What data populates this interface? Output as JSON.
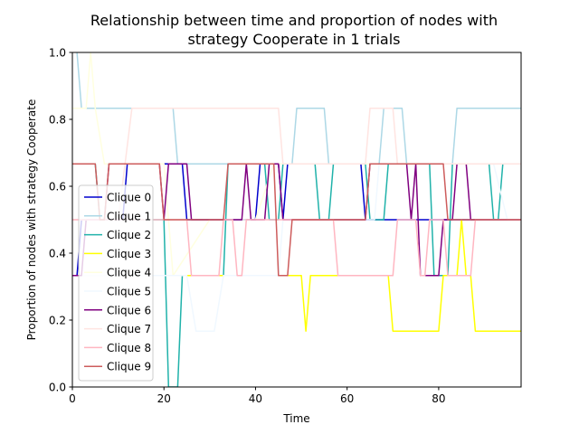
{
  "chart_data": {
    "type": "line",
    "title_line1": "Relationship between time and proportion of nodes with",
    "title_line2": "strategy Cooperate in 1 trials",
    "xlabel": "Time",
    "ylabel": "Proportion of nodes with strategy Cooperate",
    "xlim": [
      0,
      98
    ],
    "ylim": [
      0,
      1.0
    ],
    "xticks": [
      0,
      20,
      40,
      60,
      80
    ],
    "xtick_labels": [
      "0",
      "20",
      "40",
      "60",
      "80"
    ],
    "yticks": [
      0,
      0.2,
      0.4,
      0.6,
      0.8,
      1.0
    ],
    "ytick_labels": [
      "0.0",
      "0.2",
      "0.4",
      "0.6",
      "0.8",
      "1.0"
    ],
    "grid": false,
    "legend_position": "center-left",
    "series": [
      {
        "name": "Clique 0",
        "color": "#0000cd",
        "points": [
          [
            0,
            0.333
          ],
          [
            1,
            0.333
          ],
          [
            2,
            0.5
          ],
          [
            10,
            0.5
          ],
          [
            11,
            0.5
          ],
          [
            12,
            0.667
          ],
          [
            24,
            0.667
          ],
          [
            25,
            0.5
          ],
          [
            40,
            0.5
          ],
          [
            41,
            0.667
          ],
          [
            45,
            0.667
          ],
          [
            46,
            0.5
          ],
          [
            47,
            0.667
          ],
          [
            60,
            0.667
          ],
          [
            63,
            0.667
          ],
          [
            64,
            0.5
          ],
          [
            98,
            0.5
          ]
        ]
      },
      {
        "name": "Clique 1",
        "color": "#add8e6",
        "points": [
          [
            1,
            1.0
          ],
          [
            2,
            0.833
          ],
          [
            22,
            0.833
          ],
          [
            23,
            0.667
          ],
          [
            48,
            0.667
          ],
          [
            49,
            0.833
          ],
          [
            55,
            0.833
          ],
          [
            56,
            0.667
          ],
          [
            67,
            0.667
          ],
          [
            68,
            0.833
          ],
          [
            72,
            0.833
          ],
          [
            73,
            0.667
          ],
          [
            83,
            0.667
          ],
          [
            84,
            0.833
          ],
          [
            98,
            0.833
          ]
        ]
      },
      {
        "name": "Clique 2",
        "color": "#20b2aa",
        "points": [
          [
            0,
            0.667
          ],
          [
            5,
            0.667
          ],
          [
            6,
            0.5
          ],
          [
            20,
            0.5
          ],
          [
            21,
            0.0
          ],
          [
            23,
            0.0
          ],
          [
            24,
            0.333
          ],
          [
            33,
            0.333
          ],
          [
            34,
            0.667
          ],
          [
            42,
            0.667
          ],
          [
            43,
            0.5
          ],
          [
            45,
            0.5
          ],
          [
            46,
            0.667
          ],
          [
            53,
            0.667
          ],
          [
            54,
            0.5
          ],
          [
            56,
            0.5
          ],
          [
            57,
            0.667
          ],
          [
            64,
            0.667
          ],
          [
            65,
            0.5
          ],
          [
            68,
            0.5
          ],
          [
            69,
            0.667
          ],
          [
            78,
            0.667
          ],
          [
            79,
            0.333
          ],
          [
            82,
            0.333
          ],
          [
            83,
            0.667
          ],
          [
            91,
            0.667
          ],
          [
            92,
            0.5
          ],
          [
            93,
            0.5
          ],
          [
            94,
            0.667
          ],
          [
            98,
            0.667
          ]
        ]
      },
      {
        "name": "Clique 3",
        "color": "#ffff00",
        "points": [
          [
            0,
            0.333
          ],
          [
            41,
            0.333
          ],
          [
            46,
            0.333
          ],
          [
            47,
            0.333
          ],
          [
            49,
            0.333
          ],
          [
            50,
            0.333
          ],
          [
            51,
            0.167
          ],
          [
            52,
            0.333
          ],
          [
            69,
            0.333
          ],
          [
            70,
            0.167
          ],
          [
            80,
            0.167
          ],
          [
            81,
            0.333
          ],
          [
            84,
            0.333
          ],
          [
            85,
            0.5
          ],
          [
            86,
            0.333
          ],
          [
            87,
            0.333
          ],
          [
            88,
            0.167
          ],
          [
            98,
            0.167
          ]
        ]
      },
      {
        "name": "Clique 4",
        "color": "#ffffe0",
        "points": [
          [
            0,
            0.833
          ],
          [
            3,
            0.833
          ],
          [
            4,
            1.0
          ],
          [
            5,
            0.833
          ],
          [
            7,
            0.667
          ],
          [
            20,
            0.667
          ],
          [
            22,
            0.333
          ],
          [
            30,
            0.5
          ],
          [
            40,
            0.5
          ],
          [
            44,
            0.667
          ],
          [
            60,
            0.667
          ],
          [
            98,
            0.667
          ]
        ]
      },
      {
        "name": "Clique 5",
        "color": "#f0f8ff",
        "points": [
          [
            0,
            0.333
          ],
          [
            25,
            0.333
          ],
          [
            27,
            0.167
          ],
          [
            31,
            0.167
          ],
          [
            33,
            0.333
          ],
          [
            45,
            0.333
          ],
          [
            46,
            0.5
          ],
          [
            60,
            0.5
          ],
          [
            66,
            0.5
          ],
          [
            67,
            0.667
          ],
          [
            92,
            0.667
          ],
          [
            95,
            0.5
          ],
          [
            98,
            0.5
          ]
        ]
      },
      {
        "name": "Clique 6",
        "color": "#800080",
        "points": [
          [
            0,
            0.333
          ],
          [
            2,
            0.333
          ],
          [
            3,
            0.5
          ],
          [
            7,
            0.5
          ],
          [
            8,
            0.667
          ],
          [
            19,
            0.667
          ],
          [
            20,
            0.5
          ],
          [
            21,
            0.667
          ],
          [
            25,
            0.667
          ],
          [
            26,
            0.5
          ],
          [
            37,
            0.5
          ],
          [
            38,
            0.667
          ],
          [
            39,
            0.5
          ],
          [
            42,
            0.5
          ],
          [
            43,
            0.667
          ],
          [
            45,
            0.667
          ],
          [
            46,
            0.5
          ],
          [
            64,
            0.5
          ],
          [
            65,
            0.667
          ],
          [
            73,
            0.667
          ],
          [
            74,
            0.5
          ],
          [
            75,
            0.667
          ],
          [
            76,
            0.333
          ],
          [
            80,
            0.333
          ],
          [
            81,
            0.5
          ],
          [
            83,
            0.5
          ],
          [
            84,
            0.667
          ],
          [
            86,
            0.667
          ],
          [
            87,
            0.5
          ],
          [
            98,
            0.5
          ]
        ]
      },
      {
        "name": "Clique 7",
        "color": "#ffe4e1",
        "points": [
          [
            0,
            0.5
          ],
          [
            10,
            0.5
          ],
          [
            13,
            0.833
          ],
          [
            45,
            0.833
          ],
          [
            46,
            0.667
          ],
          [
            64,
            0.667
          ],
          [
            65,
            0.833
          ],
          [
            70,
            0.833
          ],
          [
            71,
            0.667
          ],
          [
            98,
            0.667
          ]
        ]
      },
      {
        "name": "Clique 8",
        "color": "#ffb6c1",
        "points": [
          [
            0,
            0.5
          ],
          [
            25,
            0.5
          ],
          [
            26,
            0.333
          ],
          [
            32,
            0.333
          ],
          [
            33,
            0.5
          ],
          [
            35,
            0.5
          ],
          [
            36,
            0.333
          ],
          [
            37,
            0.333
          ],
          [
            38,
            0.5
          ],
          [
            51,
            0.5
          ],
          [
            52,
            0.5
          ],
          [
            57,
            0.5
          ],
          [
            58,
            0.333
          ],
          [
            70,
            0.333
          ],
          [
            71,
            0.5
          ],
          [
            75,
            0.5
          ],
          [
            76,
            0.333
          ],
          [
            77,
            0.333
          ],
          [
            78,
            0.5
          ],
          [
            81,
            0.5
          ],
          [
            82,
            0.333
          ],
          [
            87,
            0.333
          ],
          [
            88,
            0.5
          ],
          [
            98,
            0.5
          ]
        ]
      },
      {
        "name": "Clique 9",
        "color": "#cd5c5c",
        "points": [
          [
            0,
            0.667
          ],
          [
            5,
            0.667
          ],
          [
            6,
            0.5
          ],
          [
            7,
            0.5
          ],
          [
            8,
            0.667
          ],
          [
            19,
            0.667
          ],
          [
            20,
            0.5
          ],
          [
            33,
            0.5
          ],
          [
            34,
            0.667
          ],
          [
            44,
            0.667
          ],
          [
            45,
            0.333
          ],
          [
            47,
            0.333
          ],
          [
            48,
            0.5
          ],
          [
            64,
            0.5
          ],
          [
            65,
            0.667
          ],
          [
            81,
            0.667
          ],
          [
            82,
            0.5
          ],
          [
            98,
            0.5
          ]
        ]
      }
    ]
  }
}
